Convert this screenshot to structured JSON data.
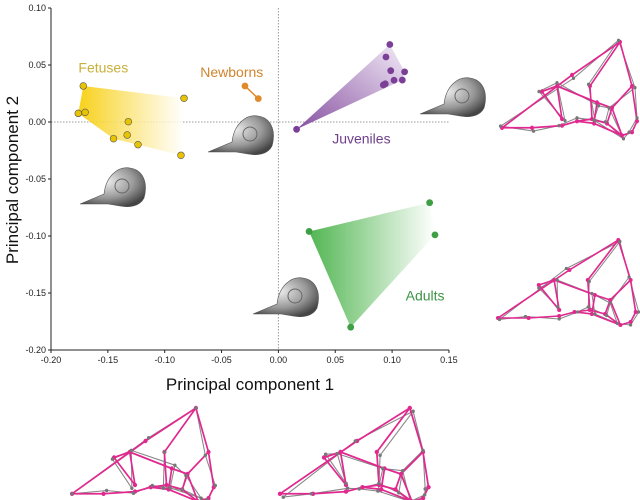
{
  "chart_data": {
    "type": "scatter",
    "title": "",
    "xlabel": "Principal component 1",
    "ylabel": "Principal component 2",
    "xlim": [
      -0.2,
      0.15
    ],
    "ylim": [
      -0.2,
      0.1
    ],
    "xticks": [
      "-0.20",
      "-0.15",
      "-0.10",
      "-0.05",
      "0.00",
      "0.05",
      "0.10",
      "0.15"
    ],
    "xtick_values": [
      -0.2,
      -0.15,
      -0.1,
      -0.05,
      0.0,
      0.05,
      0.1,
      0.15
    ],
    "yticks": [
      "0.10",
      "0.05",
      "0.00",
      "-0.05",
      "-0.10",
      "-0.15",
      "-0.20"
    ],
    "ytick_values": [
      0.1,
      0.05,
      0.0,
      -0.05,
      -0.1,
      -0.15,
      -0.2
    ],
    "grid": false,
    "reference_lines": {
      "x": 0,
      "y": 0
    },
    "series": [
      {
        "name": "Fetuses",
        "color": "#e8c400",
        "label_color": "#c9b03a",
        "label_at": [
          -0.154,
          0.048
        ],
        "x": [
          -0.1716,
          -0.176,
          -0.17,
          -0.132,
          -0.145,
          -0.133,
          -0.1235,
          -0.083,
          -0.0857
        ],
        "y": [
          0.0316,
          0.0076,
          0.0085,
          0.0003,
          -0.0146,
          -0.0114,
          -0.0199,
          0.0208,
          -0.0292
        ]
      },
      {
        "name": "Newborns",
        "color": "#e08a2a",
        "label_color": "#d0842e",
        "label_at": [
          -0.041,
          0.044
        ],
        "x": [
          -0.0294,
          -0.0177
        ],
        "y": [
          0.0316,
          0.0205
        ]
      },
      {
        "name": "Juveniles",
        "color": "#7b3f98",
        "label_color": "#6e3f8a",
        "label_at": [
          0.073,
          -0.0143
        ],
        "x": [
          0.016,
          0.098,
          0.0946,
          0.0988,
          0.111,
          0.1017,
          0.109,
          0.0923,
          0.094
        ],
        "y": [
          -0.0064,
          0.068,
          0.057,
          0.045,
          0.044,
          0.0366,
          0.0368,
          0.0325,
          0.0335
        ]
      },
      {
        "name": "Adults",
        "color": "#3f9f45",
        "label_color": "#3d9446",
        "label_at": [
          0.129,
          -0.152
        ],
        "x": [
          0.027,
          0.133,
          0.1377,
          0.0636
        ],
        "y": [
          -0.096,
          -0.0708,
          -0.099,
          -0.18
        ]
      }
    ]
  }
}
